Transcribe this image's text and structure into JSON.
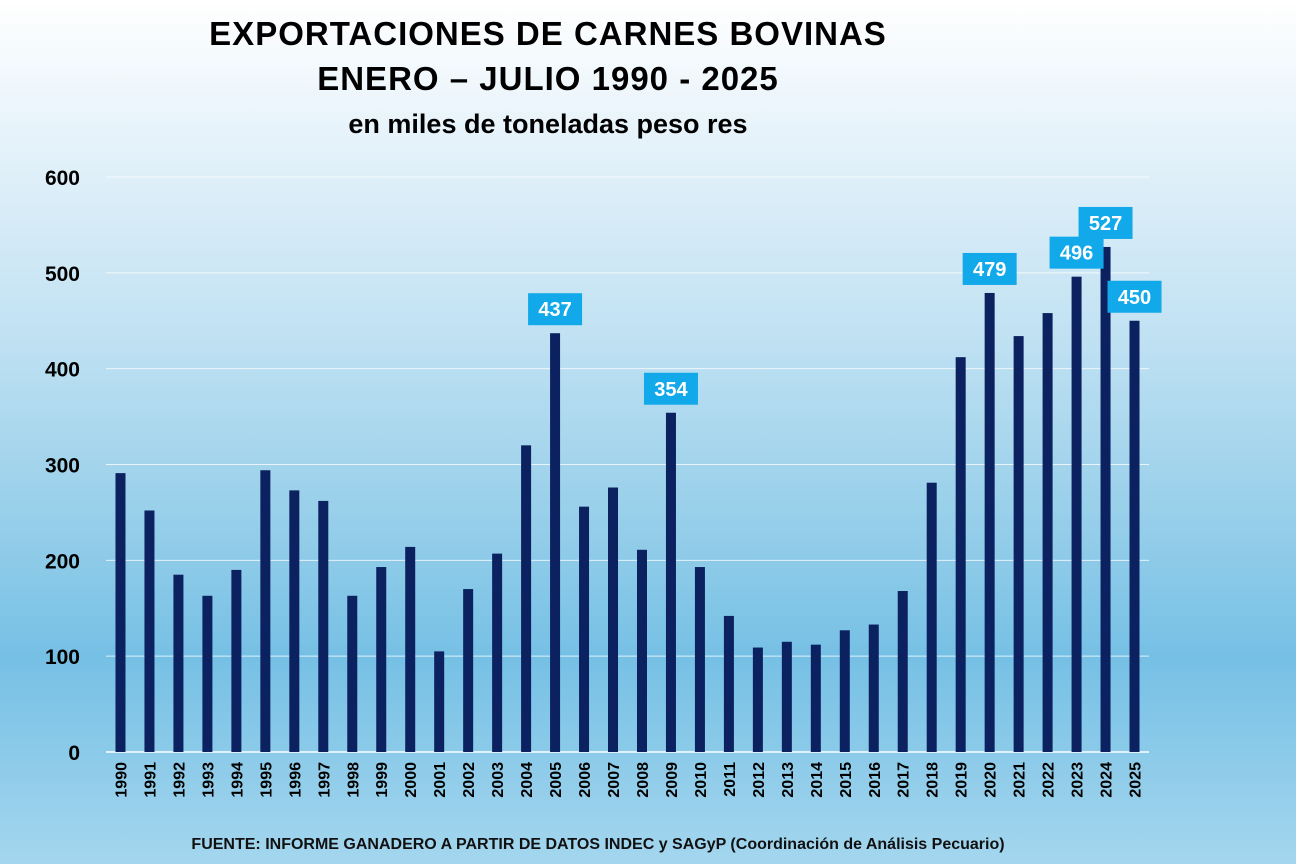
{
  "title": {
    "line1": "EXPORTACIONES DE CARNES BOVINAS",
    "line2": "ENERO – JULIO  1990 - 2025",
    "line3": "en miles de toneladas peso res"
  },
  "source": "FUENTE: INFORME GANADERO A PARTIR DE DATOS INDEC y SAGyP (Coordinación de Análisis Pecuario)",
  "colors": {
    "bar": "#0b2160",
    "label_bg": "#12a9ea",
    "label_text": "#ffffff",
    "grid": "#ffffff",
    "axis_text": "#000000"
  },
  "chart_data": {
    "type": "bar",
    "categories": [
      "1990",
      "1991",
      "1992",
      "1993",
      "1994",
      "1995",
      "1996",
      "1997",
      "1998",
      "1999",
      "2000",
      "2001",
      "2002",
      "2003",
      "2004",
      "2005",
      "2006",
      "2007",
      "2008",
      "2009",
      "2010",
      "2011",
      "2012",
      "2013",
      "2014",
      "2015",
      "2016",
      "2017",
      "2018",
      "2019",
      "2020",
      "2021",
      "2022",
      "2023",
      "2024",
      "2025"
    ],
    "values": [
      291,
      252,
      185,
      163,
      190,
      294,
      273,
      262,
      163,
      193,
      214,
      105,
      170,
      207,
      320,
      437,
      256,
      276,
      211,
      354,
      193,
      142,
      109,
      115,
      112,
      127,
      133,
      168,
      281,
      412,
      479,
      434,
      458,
      496,
      527,
      450
    ],
    "labeled_points": [
      {
        "category": "2005",
        "label": "437"
      },
      {
        "category": "2009",
        "label": "354"
      },
      {
        "category": "2020",
        "label": "479"
      },
      {
        "category": "2023",
        "label": "496"
      },
      {
        "category": "2024",
        "label": "527"
      },
      {
        "category": "2025",
        "label": "450"
      }
    ],
    "yticks": [
      "0",
      "100",
      "200",
      "300",
      "400",
      "500",
      "600"
    ],
    "ylim": [
      0,
      600
    ],
    "grid": true,
    "legend": "none"
  }
}
